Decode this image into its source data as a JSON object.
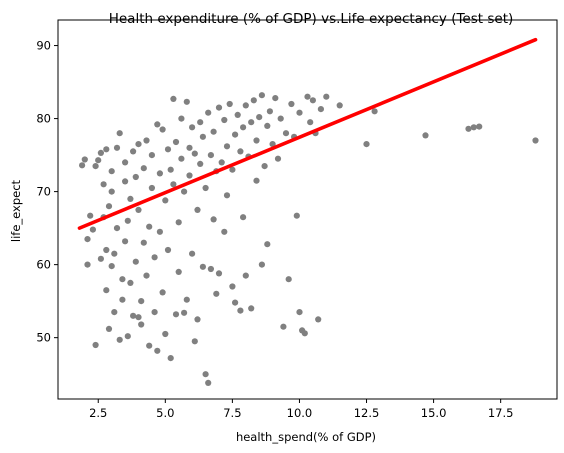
{
  "chart_data": {
    "type": "scatter",
    "title": "Health expenditure (% of GDP) vs.Life expectancy (Test set)",
    "xlabel": "health_spend(% of GDP)",
    "ylabel": "life_expect",
    "xlim": [
      1.0,
      19.6
    ],
    "ylim": [
      41.6,
      93.5
    ],
    "xticks": [
      2.5,
      5.0,
      7.5,
      10.0,
      12.5,
      15.0,
      17.5
    ],
    "xtick_labels": [
      "2.5",
      "5.0",
      "7.5",
      "10.0",
      "12.5",
      "15.0",
      "17.5"
    ],
    "yticks": [
      50,
      60,
      70,
      80,
      90
    ],
    "ytick_labels": [
      "50",
      "60",
      "70",
      "80",
      "90"
    ],
    "grid": false,
    "series": [
      {
        "kind": "points",
        "color": "#808080",
        "points": [
          [
            1.9,
            73.6
          ],
          [
            2.0,
            74.4
          ],
          [
            2.1,
            60.0
          ],
          [
            2.1,
            63.5
          ],
          [
            2.2,
            66.7
          ],
          [
            2.3,
            64.8
          ],
          [
            2.4,
            49.0
          ],
          [
            2.4,
            73.5
          ],
          [
            2.5,
            74.3
          ],
          [
            2.6,
            60.8
          ],
          [
            2.6,
            75.3
          ],
          [
            2.7,
            66.5
          ],
          [
            2.7,
            71.0
          ],
          [
            2.8,
            56.5
          ],
          [
            2.8,
            62.0
          ],
          [
            2.8,
            75.8
          ],
          [
            2.9,
            51.2
          ],
          [
            2.9,
            68.0
          ],
          [
            3.0,
            59.8
          ],
          [
            3.0,
            70.0
          ],
          [
            3.0,
            72.8
          ],
          [
            3.1,
            53.5
          ],
          [
            3.1,
            61.5
          ],
          [
            3.2,
            65.0
          ],
          [
            3.2,
            76.0
          ],
          [
            3.3,
            78.0
          ],
          [
            3.3,
            49.7
          ],
          [
            3.4,
            55.2
          ],
          [
            3.4,
            58.0
          ],
          [
            3.5,
            63.2
          ],
          [
            3.5,
            71.4
          ],
          [
            3.5,
            74.0
          ],
          [
            3.6,
            50.2
          ],
          [
            3.6,
            66.0
          ],
          [
            3.7,
            57.5
          ],
          [
            3.7,
            69.0
          ],
          [
            3.8,
            53.0
          ],
          [
            3.8,
            75.5
          ],
          [
            3.9,
            60.4
          ],
          [
            3.9,
            72.0
          ],
          [
            4.0,
            52.8
          ],
          [
            4.0,
            67.5
          ],
          [
            4.0,
            76.5
          ],
          [
            4.1,
            51.8
          ],
          [
            4.1,
            55.0
          ],
          [
            4.2,
            63.0
          ],
          [
            4.2,
            73.2
          ],
          [
            4.3,
            58.5
          ],
          [
            4.3,
            77.0
          ],
          [
            4.4,
            48.9
          ],
          [
            4.4,
            65.2
          ],
          [
            4.5,
            70.5
          ],
          [
            4.5,
            75.0
          ],
          [
            4.6,
            53.5
          ],
          [
            4.6,
            61.0
          ],
          [
            4.7,
            48.2
          ],
          [
            4.7,
            79.2
          ],
          [
            4.8,
            64.5
          ],
          [
            4.8,
            72.5
          ],
          [
            4.9,
            56.2
          ],
          [
            4.9,
            78.5
          ],
          [
            5.0,
            50.5
          ],
          [
            5.0,
            68.8
          ],
          [
            5.1,
            62.0
          ],
          [
            5.1,
            75.8
          ],
          [
            5.2,
            47.2
          ],
          [
            5.2,
            73.0
          ],
          [
            5.3,
            82.7
          ],
          [
            5.3,
            71.0
          ],
          [
            5.4,
            53.2
          ],
          [
            5.4,
            76.8
          ],
          [
            5.5,
            59.0
          ],
          [
            5.5,
            65.8
          ],
          [
            5.6,
            74.5
          ],
          [
            5.6,
            80.0
          ],
          [
            5.7,
            53.4
          ],
          [
            5.7,
            70.0
          ],
          [
            5.8,
            82.3
          ],
          [
            5.8,
            55.2
          ],
          [
            5.9,
            76.0
          ],
          [
            5.9,
            72.2
          ],
          [
            6.0,
            61.5
          ],
          [
            6.0,
            78.8
          ],
          [
            6.1,
            49.5
          ],
          [
            6.1,
            75.2
          ],
          [
            6.2,
            52.5
          ],
          [
            6.2,
            67.5
          ],
          [
            6.3,
            79.5
          ],
          [
            6.3,
            73.8
          ],
          [
            6.4,
            59.7
          ],
          [
            6.4,
            77.5
          ],
          [
            6.5,
            45.0
          ],
          [
            6.5,
            70.5
          ],
          [
            6.6,
            43.8
          ],
          [
            6.6,
            80.8
          ],
          [
            6.7,
            59.4
          ],
          [
            6.7,
            75.0
          ],
          [
            6.8,
            66.2
          ],
          [
            6.8,
            78.2
          ],
          [
            6.9,
            56.0
          ],
          [
            6.9,
            72.8
          ],
          [
            7.0,
            58.8
          ],
          [
            7.0,
            81.5
          ],
          [
            7.1,
            74.0
          ],
          [
            7.2,
            64.5
          ],
          [
            7.2,
            79.8
          ],
          [
            7.3,
            76.2
          ],
          [
            7.3,
            69.5
          ],
          [
            7.4,
            82.0
          ],
          [
            7.5,
            73.0
          ],
          [
            7.5,
            57.0
          ],
          [
            7.6,
            77.8
          ],
          [
            7.6,
            54.8
          ],
          [
            7.7,
            80.5
          ],
          [
            7.8,
            75.5
          ],
          [
            7.8,
            53.7
          ],
          [
            7.9,
            66.5
          ],
          [
            7.9,
            78.8
          ],
          [
            8.0,
            58.5
          ],
          [
            8.0,
            81.8
          ],
          [
            8.1,
            74.8
          ],
          [
            8.2,
            54.0
          ],
          [
            8.2,
            79.5
          ],
          [
            8.3,
            82.5
          ],
          [
            8.4,
            71.5
          ],
          [
            8.4,
            77.0
          ],
          [
            8.5,
            80.2
          ],
          [
            8.6,
            83.2
          ],
          [
            8.6,
            60.0
          ],
          [
            8.7,
            73.5
          ],
          [
            8.8,
            62.8
          ],
          [
            8.8,
            79.0
          ],
          [
            8.9,
            81.0
          ],
          [
            9.0,
            76.5
          ],
          [
            9.1,
            82.8
          ],
          [
            9.2,
            74.5
          ],
          [
            9.3,
            80.0
          ],
          [
            9.4,
            51.5
          ],
          [
            9.5,
            78.0
          ],
          [
            9.6,
            58.0
          ],
          [
            9.7,
            82.0
          ],
          [
            9.8,
            77.5
          ],
          [
            9.9,
            66.7
          ],
          [
            10.0,
            53.5
          ],
          [
            10.0,
            80.8
          ],
          [
            10.1,
            51.0
          ],
          [
            10.2,
            50.6
          ],
          [
            10.3,
            83.0
          ],
          [
            10.4,
            79.5
          ],
          [
            10.5,
            82.5
          ],
          [
            10.6,
            78.0
          ],
          [
            10.7,
            52.5
          ],
          [
            10.8,
            81.3
          ],
          [
            11.0,
            83.0
          ],
          [
            11.5,
            81.8
          ],
          [
            12.5,
            76.5
          ],
          [
            12.8,
            81.0
          ],
          [
            14.7,
            77.7
          ],
          [
            16.3,
            78.6
          ],
          [
            16.5,
            78.8
          ],
          [
            16.7,
            78.9
          ],
          [
            18.8,
            77.0
          ]
        ]
      },
      {
        "kind": "regression-line",
        "color": "#ff0000",
        "x": [
          1.8,
          18.8
        ],
        "y": [
          65.0,
          90.8
        ]
      }
    ]
  }
}
